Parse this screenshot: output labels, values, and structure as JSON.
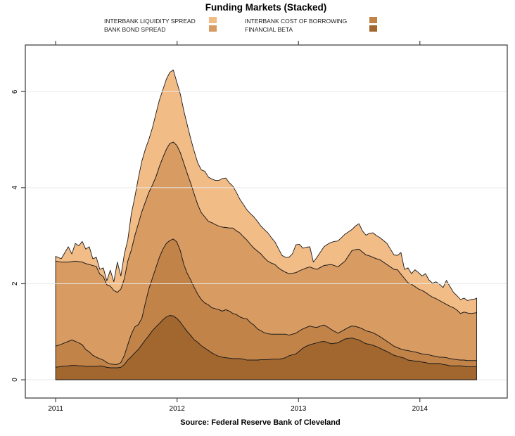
{
  "title": "Funding Markets (Stacked)",
  "source_caption": "Source: Federal Reserve Bank of Cleveland",
  "legend": {
    "items": [
      {
        "label": "INTERBANK LIQUIDITY SPREAD",
        "color": "#F2BC87"
      },
      {
        "label": "BANK BOND SPREAD",
        "color": "#D89B62"
      },
      {
        "label": "INTERBANK COST OF BORROWING",
        "color": "#C28349"
      },
      {
        "label": "FINANCIAL BETA",
        "color": "#A1672F"
      }
    ]
  },
  "chart_data": {
    "type": "area",
    "stacked": true,
    "title": "Funding Markets (Stacked)",
    "xlabel": "",
    "ylabel": "",
    "grid": "horizontal",
    "legend_position": "top",
    "x_ticks": [
      2011,
      2012,
      2013,
      2014
    ],
    "y_ticks": [
      0,
      2,
      4,
      6
    ],
    "xlim": [
      2010.75,
      2014.72
    ],
    "ylim": [
      -0.38,
      6.97
    ],
    "colors": {
      "grid": "#E9E9E9",
      "axis": "#454545",
      "area_border": "#1A1A1A",
      "text": "#000000"
    },
    "x": [
      2011.0,
      2011.046,
      2011.104,
      2011.133,
      2011.162,
      2011.19,
      2011.219,
      2011.248,
      2011.277,
      2011.306,
      2011.335,
      2011.364,
      2011.392,
      2011.421,
      2011.45,
      2011.479,
      2011.508,
      2011.537,
      2011.566,
      2011.594,
      2011.623,
      2011.652,
      2011.681,
      2011.71,
      2011.739,
      2011.767,
      2011.796,
      2011.825,
      2011.854,
      2011.883,
      2011.912,
      2011.94,
      2011.969,
      2011.998,
      2012.027,
      2012.056,
      2012.085,
      2012.114,
      2012.142,
      2012.171,
      2012.2,
      2012.229,
      2012.258,
      2012.287,
      2012.316,
      2012.344,
      2012.373,
      2012.402,
      2012.431,
      2012.46,
      2012.489,
      2012.517,
      2012.546,
      2012.575,
      2012.604,
      2012.633,
      2012.662,
      2012.691,
      2012.719,
      2012.748,
      2012.777,
      2012.806,
      2012.835,
      2012.864,
      2012.893,
      2012.921,
      2012.95,
      2012.979,
      2013.008,
      2013.037,
      2013.066,
      2013.094,
      2013.123,
      2013.152,
      2013.181,
      2013.21,
      2013.239,
      2013.268,
      2013.296,
      2013.325,
      2013.354,
      2013.383,
      2013.412,
      2013.441,
      2013.469,
      2013.498,
      2013.527,
      2013.556,
      2013.585,
      2013.614,
      2013.643,
      2013.671,
      2013.7,
      2013.729,
      2013.758,
      2013.787,
      2013.816,
      2013.844,
      2013.873,
      2013.902,
      2013.931,
      2013.96,
      2013.989,
      2014.018,
      2014.046,
      2014.075,
      2014.104,
      2014.133,
      2014.162,
      2014.191,
      2014.219,
      2014.248,
      2014.277,
      2014.306,
      2014.335,
      2014.364,
      2014.392,
      2014.421,
      2014.45,
      2014.468
    ],
    "series": [
      {
        "name": "FINANCIAL BETA",
        "color": "#A1672F",
        "values": [
          0.26,
          0.28,
          0.29,
          0.3,
          0.3,
          0.29,
          0.29,
          0.28,
          0.28,
          0.28,
          0.28,
          0.29,
          0.28,
          0.26,
          0.25,
          0.25,
          0.25,
          0.26,
          0.32,
          0.41,
          0.48,
          0.56,
          0.63,
          0.73,
          0.83,
          0.92,
          1.02,
          1.1,
          1.17,
          1.25,
          1.31,
          1.34,
          1.33,
          1.28,
          1.2,
          1.1,
          1.0,
          0.92,
          0.83,
          0.78,
          0.71,
          0.66,
          0.61,
          0.56,
          0.52,
          0.49,
          0.47,
          0.46,
          0.45,
          0.44,
          0.44,
          0.44,
          0.43,
          0.41,
          0.41,
          0.41,
          0.41,
          0.42,
          0.42,
          0.42,
          0.43,
          0.43,
          0.43,
          0.44,
          0.46,
          0.5,
          0.52,
          0.54,
          0.6,
          0.66,
          0.7,
          0.73,
          0.75,
          0.77,
          0.79,
          0.8,
          0.78,
          0.75,
          0.76,
          0.77,
          0.81,
          0.85,
          0.86,
          0.87,
          0.85,
          0.83,
          0.79,
          0.75,
          0.74,
          0.72,
          0.69,
          0.66,
          0.62,
          0.59,
          0.55,
          0.51,
          0.49,
          0.47,
          0.45,
          0.41,
          0.4,
          0.39,
          0.39,
          0.37,
          0.36,
          0.34,
          0.34,
          0.34,
          0.34,
          0.32,
          0.31,
          0.29,
          0.29,
          0.29,
          0.29,
          0.28,
          0.27,
          0.27,
          0.27,
          0.27
        ]
      },
      {
        "name": "INTERBANK COST OF BORROWING",
        "color": "#C28349",
        "values": [
          0.44,
          0.46,
          0.51,
          0.53,
          0.5,
          0.48,
          0.44,
          0.35,
          0.3,
          0.23,
          0.19,
          0.15,
          0.13,
          0.1,
          0.08,
          0.07,
          0.07,
          0.1,
          0.19,
          0.32,
          0.47,
          0.54,
          0.52,
          0.55,
          0.77,
          0.97,
          1.09,
          1.23,
          1.38,
          1.47,
          1.53,
          1.56,
          1.6,
          1.59,
          1.49,
          1.3,
          1.21,
          1.15,
          1.09,
          1.0,
          0.96,
          0.94,
          0.95,
          0.94,
          0.96,
          0.97,
          0.96,
          1.0,
          0.98,
          0.94,
          0.92,
          0.87,
          0.85,
          0.86,
          0.78,
          0.73,
          0.65,
          0.6,
          0.56,
          0.54,
          0.52,
          0.52,
          0.52,
          0.51,
          0.49,
          0.43,
          0.43,
          0.43,
          0.42,
          0.4,
          0.39,
          0.39,
          0.35,
          0.32,
          0.33,
          0.34,
          0.32,
          0.3,
          0.25,
          0.2,
          0.2,
          0.2,
          0.23,
          0.25,
          0.26,
          0.26,
          0.27,
          0.27,
          0.26,
          0.26,
          0.25,
          0.24,
          0.23,
          0.21,
          0.2,
          0.19,
          0.18,
          0.17,
          0.17,
          0.2,
          0.19,
          0.19,
          0.17,
          0.17,
          0.17,
          0.18,
          0.16,
          0.15,
          0.13,
          0.15,
          0.15,
          0.15,
          0.14,
          0.13,
          0.12,
          0.13,
          0.13,
          0.13,
          0.13,
          0.13
        ]
      },
      {
        "name": "BANK BOND SPREAD",
        "color": "#D89B62",
        "values": [
          1.77,
          1.71,
          1.65,
          1.63,
          1.67,
          1.69,
          1.72,
          1.79,
          1.82,
          1.87,
          1.89,
          1.76,
          1.74,
          1.62,
          1.62,
          1.54,
          1.5,
          1.53,
          1.6,
          1.74,
          1.75,
          1.9,
          2.1,
          2.22,
          2.1,
          2.01,
          1.94,
          1.89,
          1.89,
          1.91,
          1.96,
          2.02,
          2.02,
          2.01,
          2.04,
          2.11,
          2.08,
          2.01,
          1.94,
          1.86,
          1.81,
          1.79,
          1.74,
          1.77,
          1.75,
          1.74,
          1.75,
          1.71,
          1.73,
          1.78,
          1.74,
          1.75,
          1.7,
          1.64,
          1.63,
          1.6,
          1.62,
          1.6,
          1.56,
          1.51,
          1.48,
          1.45,
          1.38,
          1.33,
          1.29,
          1.28,
          1.27,
          1.26,
          1.25,
          1.24,
          1.24,
          1.23,
          1.22,
          1.21,
          1.22,
          1.24,
          1.29,
          1.35,
          1.37,
          1.38,
          1.4,
          1.42,
          1.49,
          1.57,
          1.6,
          1.63,
          1.6,
          1.58,
          1.58,
          1.57,
          1.58,
          1.6,
          1.6,
          1.6,
          1.6,
          1.6,
          1.62,
          1.56,
          1.49,
          1.41,
          1.4,
          1.36,
          1.33,
          1.32,
          1.29,
          1.25,
          1.22,
          1.2,
          1.18,
          1.14,
          1.11,
          1.09,
          1.07,
          1.03,
          0.97,
          1.0,
          0.99,
          0.98,
          0.99,
          1.0
        ]
      },
      {
        "name": "INTERBANK LIQUIDITY SPREAD",
        "color": "#F2BC87",
        "values": [
          0.1,
          0.07,
          0.32,
          0.16,
          0.37,
          0.33,
          0.43,
          0.3,
          0.37,
          0.14,
          0.19,
          0.1,
          0.18,
          0.08,
          0.33,
          0.18,
          0.63,
          0.27,
          0.51,
          0.44,
          0.75,
          0.8,
          0.95,
          1.05,
          1.1,
          1.1,
          1.19,
          1.31,
          1.38,
          1.41,
          1.46,
          1.48,
          1.5,
          1.32,
          1.22,
          1.09,
          1.01,
          0.92,
          0.89,
          0.87,
          0.89,
          0.95,
          0.92,
          0.91,
          0.92,
          0.95,
          1.01,
          1.03,
          0.94,
          0.87,
          0.8,
          0.7,
          0.67,
          0.63,
          0.64,
          0.65,
          0.62,
          0.58,
          0.59,
          0.59,
          0.53,
          0.47,
          0.4,
          0.31,
          0.31,
          0.34,
          0.4,
          0.58,
          0.55,
          0.44,
          0.43,
          0.42,
          0.13,
          0.25,
          0.32,
          0.39,
          0.43,
          0.46,
          0.5,
          0.54,
          0.55,
          0.56,
          0.5,
          0.44,
          0.49,
          0.53,
          0.44,
          0.41,
          0.47,
          0.51,
          0.48,
          0.46,
          0.45,
          0.44,
          0.37,
          0.3,
          0.3,
          0.45,
          0.19,
          0.31,
          0.22,
          0.35,
          0.34,
          0.3,
          0.39,
          0.31,
          0.29,
          0.35,
          0.34,
          0.31,
          0.5,
          0.41,
          0.32,
          0.3,
          0.29,
          0.29,
          0.26,
          0.29,
          0.29,
          0.3
        ]
      }
    ]
  }
}
